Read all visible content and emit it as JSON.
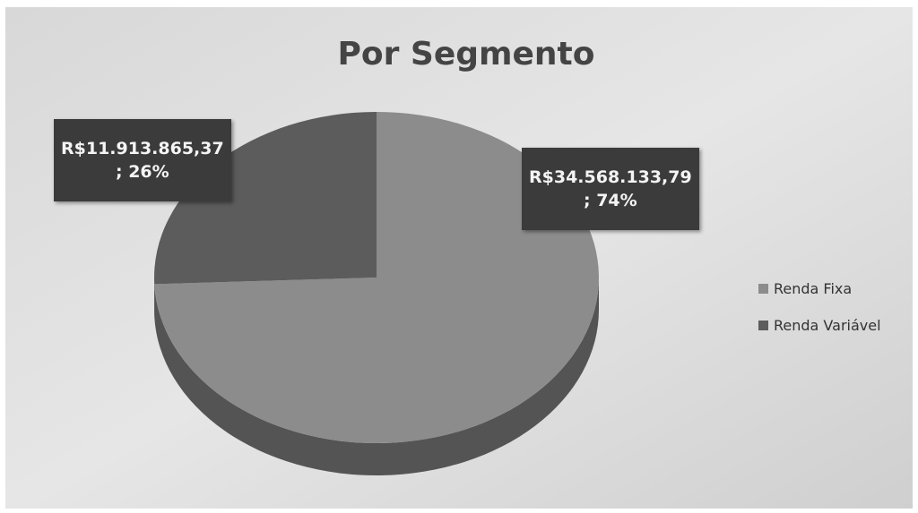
{
  "chart_data": {
    "type": "pie",
    "title": "Por Segmento",
    "categories": [
      "Renda Fixa",
      "Renda Variável"
    ],
    "values": [
      34568133.79,
      11913865.37
    ],
    "value_labels": [
      "R$34.568.133,79\n; 74%",
      "R$11.913.865,37\n; 26%"
    ],
    "colors": [
      "#8c8c8c",
      "#5c5c5c"
    ],
    "legend": "right"
  }
}
